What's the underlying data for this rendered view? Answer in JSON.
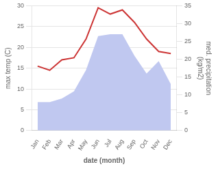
{
  "chart_data": {
    "type": "line",
    "xlabel": "date (month)",
    "ylabel": "max temp (C)",
    "y2label": "med. precipitation\n(kg/m2)",
    "categories": [
      "Jan",
      "Feb",
      "Mar",
      "Apr",
      "May",
      "Jun",
      "Jul",
      "Aug",
      "Sep",
      "Oct",
      "Nov",
      "Dec"
    ],
    "series": [
      {
        "type": "area",
        "color": "#c0c8f0",
        "axis": "y2",
        "values": [
          8.0,
          8.0,
          9.0,
          11.0,
          17.0,
          26.5,
          27.0,
          27.0,
          21.0,
          16.0,
          19.5,
          13.0
        ]
      },
      {
        "type": "line",
        "color": "#cc3333",
        "values": [
          15.5,
          14.5,
          17.0,
          17.5,
          22.0,
          29.5,
          28.0,
          29.0,
          26.0,
          22.0,
          19.0,
          18.5
        ]
      }
    ],
    "ylim": [
      0,
      30
    ],
    "yticks": [
      0,
      5,
      10,
      15,
      20,
      25,
      30
    ],
    "y2lim": [
      0,
      35
    ],
    "y2ticks": [
      0,
      5,
      10,
      15,
      20,
      25,
      30,
      35
    ],
    "grid": true
  }
}
